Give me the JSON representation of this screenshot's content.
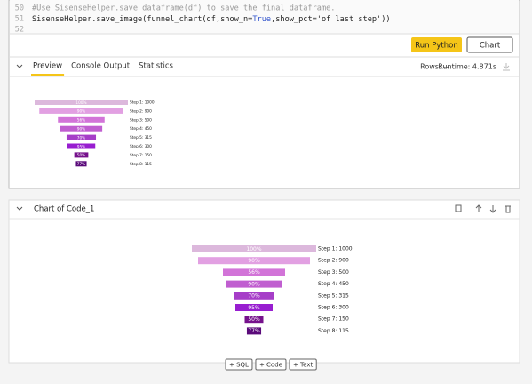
{
  "editor": {
    "lines": [
      {
        "number": 50,
        "text": "#Use SisenseHelper.save_dataframe(df) to save the final dataframe."
      },
      {
        "number": 51,
        "parts": [
          "SisenseHelper.save_image(funnel_chart(df,show_n=",
          "True",
          ",show_pct='of last step'))"
        ]
      },
      {
        "number": 52
      }
    ]
  },
  "toolbar": {
    "run": "Run Python",
    "chart": "Chart"
  },
  "tabs": [
    "Preview",
    "Console Output",
    "Statistics"
  ],
  "stats": {
    "rows": "Rows: --",
    "runtime": "Runtime: 4.871s"
  },
  "chart_cell": {
    "title": "Chart of Code_1"
  },
  "funnel": {
    "labels": [
      "Step 1: 1000",
      "Step 2: 900",
      "Step 3: 500",
      "Step 4: 450",
      "Step 5: 315",
      "Step 6: 300",
      "Step 7: 150",
      "Step 8: 115"
    ],
    "values": [
      1000,
      900,
      500,
      450,
      315,
      300,
      150,
      115
    ],
    "pct_labels": [
      "100%",
      "90%",
      "56%",
      "90%",
      "70%",
      "95%",
      "50%",
      "77%"
    ],
    "colors": [
      "#dcb8dc",
      "#e2a0e2",
      "#d274d8",
      "#c05ed0",
      "#a63ec8",
      "#981ed0",
      "#76128c",
      "#5a0a7a"
    ]
  },
  "add_buttons": [
    "+ SQL",
    "+ Code",
    "+ Text"
  ]
}
